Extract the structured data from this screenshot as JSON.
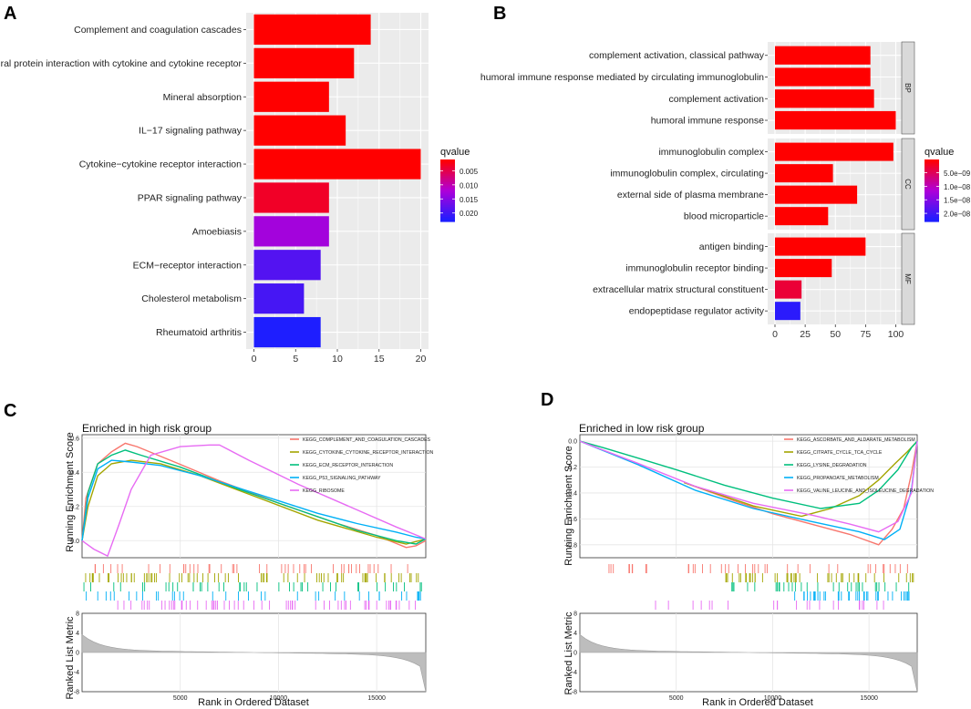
{
  "colors": {
    "low": "#FF0000",
    "high": "#1E1EFF",
    "mid": "#B000D8"
  },
  "chart_data": [
    {
      "panel": "A",
      "type": "bar",
      "orientation": "horizontal",
      "categories": [
        "Complement and coagulation cascades",
        "Viral protein interaction with cytokine and cytokine receptor",
        "Mineral absorption",
        "IL−17 signaling pathway",
        "Cytokine−cytokine receptor interaction",
        "PPAR signaling pathway",
        "Amoebiasis",
        "ECM−receptor interaction",
        "Cholesterol metabolism",
        "Rheumatoid arthritis"
      ],
      "values": [
        14,
        12,
        9,
        11,
        20,
        9,
        9,
        8,
        6,
        8
      ],
      "qvalues": [
        0.001,
        0.001,
        0.001,
        0.001,
        0.001,
        0.003,
        0.013,
        0.019,
        0.02,
        0.023
      ],
      "xticks": [
        0,
        5,
        10,
        15,
        20
      ],
      "xlim": [
        0,
        20.8
      ],
      "legend": {
        "title": "qvalue",
        "min": 0.001,
        "max": 0.023,
        "ticks": [
          0.005,
          0.01,
          0.015,
          0.02
        ],
        "tick_labels": [
          "0.005",
          "0.010",
          "0.015",
          "0.020"
        ]
      }
    },
    {
      "panel": "B",
      "type": "bar",
      "orientation": "horizontal",
      "xticks": [
        0,
        25,
        50,
        75,
        100
      ],
      "xlim": [
        0,
        103
      ],
      "groups": [
        {
          "name": "BP",
          "categories": [
            "complement activation, classical pathway",
            "humoral immune response mediated by circulating immunoglobulin",
            "complement activation",
            "humoral immune response"
          ],
          "values": [
            79,
            79,
            82,
            100
          ],
          "qvalues": [
            1e-10,
            1e-10,
            1e-10,
            1e-10
          ]
        },
        {
          "name": "CC",
          "categories": [
            "immunoglobulin complex",
            "immunoglobulin complex, circulating",
            "external side of plasma membrane",
            "blood microparticle"
          ],
          "values": [
            98,
            48,
            68,
            44
          ],
          "qvalues": [
            1e-10,
            1e-10,
            1e-10,
            1e-10
          ]
        },
        {
          "name": "MF",
          "categories": [
            "antigen binding",
            "immunoglobulin receptor binding",
            "extracellular matrix structural constituent",
            "endopeptidase regulator activity"
          ],
          "values": [
            75,
            47,
            22,
            21
          ],
          "qvalues": [
            1e-10,
            1e-10,
            3e-09,
            2.2e-08
          ]
        }
      ],
      "legend": {
        "title": "qvalue",
        "min": 1e-10,
        "max": 2.3e-08,
        "ticks": [
          5e-09,
          1e-08,
          1.5e-08,
          2e-08
        ],
        "tick_labels": [
          "5.0e−09",
          "1.0e−08",
          "1.5e−08",
          "2.0e−08"
        ]
      }
    },
    {
      "panel": "C",
      "type": "line",
      "title": "Enriched in high risk group",
      "ylabel": "Running Enrichment Score",
      "ylabel2": "Ranked List Metric",
      "xlabel": "Rank in Ordered Dataset",
      "xlim": [
        0,
        17500
      ],
      "ylim": [
        -0.1,
        0.62
      ],
      "yticks": [
        0,
        0.2,
        0.4,
        0.6
      ],
      "ytick_labels": [
        "0.0",
        "0.2",
        "0.4",
        "0.6"
      ],
      "xticks": [
        5000,
        10000,
        15000
      ],
      "metric_yticks": [
        8,
        4,
        0,
        -4,
        -8
      ],
      "series": [
        {
          "name": "KEGG_COMPLEMENT_AND_COAGULATION_CASCADES",
          "color": "#F8766D",
          "x": [
            0,
            200,
            800,
            1500,
            2200,
            2800,
            4500,
            7000,
            10000,
            13000,
            15000,
            16500,
            17000,
            17500
          ],
          "y": [
            0,
            0.25,
            0.45,
            0.52,
            0.57,
            0.55,
            0.47,
            0.35,
            0.22,
            0.1,
            0.03,
            -0.04,
            -0.03,
            0
          ]
        },
        {
          "name": "KEGG_CYTOKINE_CYTOKINE_RECEPTOR_INTERACTION",
          "color": "#A3A500",
          "x": [
            0,
            300,
            800,
            1500,
            2500,
            4000,
            6000,
            9000,
            12000,
            15000,
            16500,
            17500
          ],
          "y": [
            0,
            0.2,
            0.38,
            0.45,
            0.47,
            0.45,
            0.38,
            0.25,
            0.12,
            0.02,
            -0.02,
            0.01
          ]
        },
        {
          "name": "KEGG_ECM_RECEPTOR_INTERACTION",
          "color": "#00BF7D",
          "x": [
            0,
            300,
            800,
            1500,
            2200,
            3000,
            5000,
            8000,
            11000,
            14000,
            16000,
            17000,
            17500
          ],
          "y": [
            0,
            0.28,
            0.45,
            0.5,
            0.53,
            0.5,
            0.43,
            0.3,
            0.18,
            0.06,
            0.0,
            -0.02,
            0.01
          ]
        },
        {
          "name": "KEGG_P53_SIGNALING_PATHWAY",
          "color": "#00B0F6",
          "x": [
            0,
            300,
            800,
            1500,
            2500,
            4000,
            6000,
            9000,
            12000,
            14000,
            16000,
            17000,
            17500
          ],
          "y": [
            0,
            0.25,
            0.42,
            0.47,
            0.46,
            0.44,
            0.38,
            0.27,
            0.16,
            0.1,
            0.05,
            0.02,
            0.01
          ]
        },
        {
          "name": "KEGG_RIBOSOME",
          "color": "#E76BF3",
          "x": [
            0,
            600,
            1300,
            1900,
            2500,
            3500,
            5000,
            6500,
            7000,
            8500,
            11000,
            14000,
            16000,
            17500
          ],
          "y": [
            0,
            -0.05,
            -0.09,
            0.1,
            0.3,
            0.5,
            0.55,
            0.56,
            0.56,
            0.47,
            0.33,
            0.18,
            0.08,
            0.01
          ]
        }
      ],
      "legend_entries": [
        "KEGG_COMPLEMENT_AND_COAGULATION_CASCADES",
        "KEGG_CYTOKINE_CYTOKINE_RECEPTOR_INTERACTION",
        "KEGG_ECM_RECEPTOR_INTERACTION",
        "KEGG_P53_SIGNALING_PATHWAY",
        "KEGG_RIBOSOME"
      ]
    },
    {
      "panel": "D",
      "type": "line",
      "title": "Enriched in low risk group",
      "ylabel": "Running Enrichment Score",
      "ylabel2": "Ranked List Metric",
      "xlabel": "Rank in Ordered Dataset",
      "xlim": [
        0,
        17500
      ],
      "ylim": [
        -0.9,
        0.05
      ],
      "yticks": [
        0,
        -0.2,
        -0.4,
        -0.6,
        -0.8
      ],
      "ytick_labels": [
        "0.0",
        "−0.2",
        "−0.4",
        "−0.6",
        "−0.8"
      ],
      "xticks": [
        5000,
        10000,
        15000
      ],
      "metric_yticks": [
        8,
        4,
        0,
        -4,
        -8
      ],
      "series": [
        {
          "name": "KEGG_ASCORBATE_AND_ALDARATE_METABOLISM",
          "color": "#F8766D",
          "x": [
            5600,
            8000,
            10000,
            12000,
            14000,
            15500,
            16200,
            16800,
            17200,
            17500
          ],
          "y": [
            -0.33,
            -0.46,
            -0.56,
            -0.64,
            -0.72,
            -0.8,
            -0.68,
            -0.52,
            -0.25,
            0
          ]
        },
        {
          "name": "KEGG_CITRATE_CYCLE_TCA_CYCLE",
          "color": "#A3A500",
          "x": [
            5400,
            7000,
            9000,
            11500,
            13000,
            14500,
            15500,
            16300,
            17000,
            17500
          ],
          "y": [
            -0.32,
            -0.4,
            -0.5,
            -0.58,
            -0.52,
            -0.42,
            -0.3,
            -0.18,
            -0.08,
            0
          ]
        },
        {
          "name": "KEGG_LYSINE_DEGRADATION",
          "color": "#00BF7D",
          "x": [
            0,
            1200,
            3000,
            5000,
            7500,
            10000,
            12500,
            14500,
            15500,
            16500,
            17200,
            17500
          ],
          "y": [
            0,
            -0.05,
            -0.13,
            -0.22,
            -0.34,
            -0.44,
            -0.52,
            -0.48,
            -0.38,
            -0.22,
            -0.05,
            0
          ]
        },
        {
          "name": "KEGG_PROPANOATE_METABOLISM",
          "color": "#00B0F6",
          "x": [
            0,
            3000,
            6000,
            9000,
            12000,
            14500,
            15800,
            16600,
            17200,
            17500
          ],
          "y": [
            0,
            -0.18,
            -0.38,
            -0.52,
            -0.62,
            -0.7,
            -0.76,
            -0.68,
            -0.38,
            0
          ]
        },
        {
          "name": "KEGG_VALINE_LEUCINE_AND_ISOLEUCINE_DEGRADATION",
          "color": "#E76BF3",
          "x": [
            0,
            3000,
            6000,
            9000,
            12000,
            14000,
            15500,
            16500,
            17200,
            17500
          ],
          "y": [
            0,
            -0.17,
            -0.35,
            -0.48,
            -0.57,
            -0.64,
            -0.7,
            -0.62,
            -0.4,
            0
          ]
        }
      ],
      "legend_entries": [
        "KEGG_ASCORBATE_AND_ALDARATE_METABOLISM",
        "KEGG_CITRATE_CYCLE_TCA_CYCLE",
        "KEGG_LYSINE_DEGRADATION",
        "KEGG_PROPANOATE_METABOLISM",
        "KEGG_VALINE_LEUCINE_AND_ISOLEUCINE_DEGRADATION"
      ]
    }
  ],
  "panel_labels": [
    "A",
    "B",
    "C",
    "D"
  ]
}
